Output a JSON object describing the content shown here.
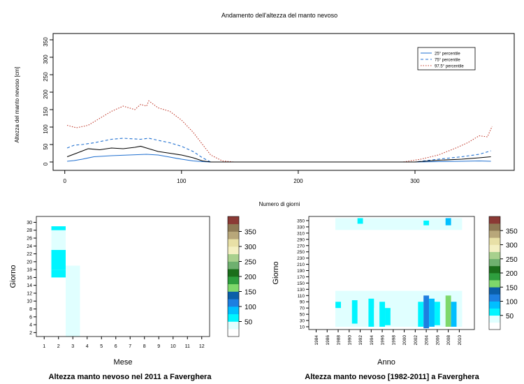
{
  "chart_data": [
    {
      "type": "line",
      "title": "Andamento dell'altezza del manto nevoso",
      "xlabel": "Numero di giorni",
      "ylabel": "Altezza del manto nevoso [cm]",
      "xlim": [
        0,
        370
      ],
      "ylim": [
        0,
        360
      ],
      "x_ticks": [
        0,
        100,
        200,
        300
      ],
      "y_ticks": [
        0,
        50,
        100,
        150,
        200,
        250,
        300,
        350
      ],
      "legend": "top-right",
      "series": [
        {
          "name": "25° percentile",
          "color": "#1f6fd0",
          "style": "solid",
          "x": [
            2,
            8,
            15,
            25,
            40,
            55,
            70,
            80,
            90,
            100,
            110,
            118,
            125,
            300,
            320,
            340,
            355,
            365
          ],
          "y": [
            2,
            4,
            8,
            15,
            18,
            20,
            22,
            20,
            14,
            8,
            3,
            1,
            0,
            0,
            1,
            2,
            3,
            2
          ]
        },
        {
          "name": "75° percentile",
          "color": "#1f6fd0",
          "style": "dashed",
          "x": [
            2,
            8,
            15,
            25,
            40,
            50,
            65,
            72,
            80,
            90,
            100,
            110,
            118,
            125,
            300,
            320,
            340,
            355,
            365
          ],
          "y": [
            40,
            48,
            50,
            55,
            65,
            68,
            65,
            68,
            62,
            55,
            45,
            30,
            12,
            0,
            0,
            8,
            15,
            22,
            32
          ]
        },
        {
          "name": "97.5° percentile",
          "color": "#c0392b",
          "style": "dotted",
          "x": [
            2,
            10,
            20,
            30,
            40,
            50,
            60,
            65,
            70,
            72,
            80,
            90,
            100,
            110,
            118,
            125,
            135,
            145,
            290,
            305,
            320,
            335,
            345,
            355,
            362,
            366
          ],
          "y": [
            105,
            98,
            105,
            125,
            145,
            160,
            150,
            165,
            160,
            175,
            155,
            145,
            120,
            85,
            50,
            20,
            3,
            0,
            0,
            8,
            20,
            40,
            55,
            75,
            72,
            102
          ]
        },
        {
          "name": "",
          "color": "#000000",
          "style": "solid",
          "x": [
            2,
            10,
            20,
            30,
            40,
            50,
            60,
            65,
            70,
            80,
            90,
            100,
            110,
            118,
            125,
            300,
            320,
            340,
            355,
            365
          ],
          "y": [
            15,
            25,
            38,
            35,
            40,
            38,
            42,
            45,
            40,
            30,
            25,
            20,
            12,
            3,
            0,
            0,
            5,
            8,
            12,
            15
          ]
        }
      ]
    },
    {
      "type": "heatmap",
      "title": "Altezza manto nevoso nel 2011 a Faverghera",
      "xlabel": "Mese",
      "ylabel": "Giorno",
      "x_ticks": [
        "1",
        "2",
        "3",
        "4",
        "5",
        "6",
        "7",
        "8",
        "9",
        "10",
        "11",
        "12"
      ],
      "y_ticks": [
        2,
        4,
        6,
        8,
        10,
        12,
        14,
        16,
        18,
        20,
        22,
        24,
        26,
        28,
        30
      ],
      "colorbar_ticks": [
        50,
        100,
        150,
        200,
        250,
        300,
        350
      ],
      "cells": [
        {
          "month": 1,
          "d1": 1,
          "d2": 9,
          "value": 10
        },
        {
          "month": 1,
          "d1": 9,
          "d2": 15,
          "value": 5
        },
        {
          "month": 1,
          "d1": 15,
          "d2": 31,
          "value": 10
        },
        {
          "month": 2,
          "d1": 1,
          "d2": 16,
          "value": 10
        },
        {
          "month": 2,
          "d1": 16,
          "d2": 18,
          "value": 60
        },
        {
          "month": 2,
          "d1": 18,
          "d2": 23,
          "value": 70
        },
        {
          "month": 2,
          "d1": 23,
          "d2": 28,
          "value": 40
        },
        {
          "month": 2,
          "d1": 28,
          "d2": 29,
          "value": 70
        },
        {
          "month": 3,
          "d1": 1,
          "d2": 2,
          "value": 35
        },
        {
          "month": 3,
          "d1": 2,
          "d2": 19,
          "value": 30
        },
        {
          "month": 3,
          "d1": 19,
          "d2": 29,
          "value": 10
        },
        {
          "month": 5,
          "d1": 15,
          "d2": 17,
          "value": 10
        },
        {
          "month": 10,
          "d1": 20,
          "d2": 22,
          "value": 10
        },
        {
          "month": 12,
          "d1": 12,
          "d2": 31,
          "value": 10
        }
      ]
    },
    {
      "type": "heatmap",
      "title": "Altezza manto nevoso [1982-2011] a Faverghera",
      "xlabel": "Anno",
      "ylabel": "Giorno",
      "x_ticks": [
        "1984",
        "1986",
        "1988",
        "1990",
        "1992",
        "1994",
        "1996",
        "1998",
        "2000",
        "2002",
        "2004",
        "2006",
        "2008",
        "2010"
      ],
      "y_ticks": [
        10,
        30,
        50,
        70,
        90,
        110,
        130,
        150,
        170,
        190,
        210,
        230,
        250,
        270,
        290,
        310,
        330,
        350
      ],
      "colorbar_ticks": [
        50,
        100,
        150,
        200,
        250,
        300,
        350
      ],
      "cells": [
        {
          "year": 1988,
          "d1": 70,
          "d2": 90,
          "value": 60
        },
        {
          "year": 1990,
          "d1": 15,
          "d2": 80,
          "value": 40
        },
        {
          "year": 1991,
          "d1": 20,
          "d2": 95,
          "value": 50
        },
        {
          "year": 1992,
          "d1": 340,
          "d2": 358,
          "value": 50
        },
        {
          "year": 1993,
          "d1": 15,
          "d2": 60,
          "value": 40
        },
        {
          "year": 1994,
          "d1": 10,
          "d2": 100,
          "value": 60
        },
        {
          "year": 1995,
          "d1": 20,
          "d2": 70,
          "value": 40
        },
        {
          "year": 1996,
          "d1": 10,
          "d2": 90,
          "value": 70
        },
        {
          "year": 1997,
          "d1": 15,
          "d2": 70,
          "value": 50
        },
        {
          "year": 1998,
          "d1": 20,
          "d2": 60,
          "value": 30
        },
        {
          "year": 2000,
          "d1": 10,
          "d2": 50,
          "value": 30
        },
        {
          "year": 2001,
          "d1": 30,
          "d2": 80,
          "value": 40
        },
        {
          "year": 2003,
          "d1": 10,
          "d2": 90,
          "value": 60
        },
        {
          "year": 2004,
          "d1": 5,
          "d2": 110,
          "value": 100
        },
        {
          "year": 2004,
          "d1": 335,
          "d2": 350,
          "value": 60
        },
        {
          "year": 2005,
          "d1": 10,
          "d2": 100,
          "value": 80
        },
        {
          "year": 2006,
          "d1": 15,
          "d2": 90,
          "value": 70
        },
        {
          "year": 2007,
          "d1": 20,
          "d2": 70,
          "value": 40
        },
        {
          "year": 2008,
          "d1": 10,
          "d2": 110,
          "value": 150
        },
        {
          "year": 2008,
          "d1": 335,
          "d2": 358,
          "value": 90
        },
        {
          "year": 2009,
          "d1": 10,
          "d2": 90,
          "value": 90
        },
        {
          "year": 2010,
          "d1": 20,
          "d2": 70,
          "value": 40
        }
      ]
    }
  ]
}
